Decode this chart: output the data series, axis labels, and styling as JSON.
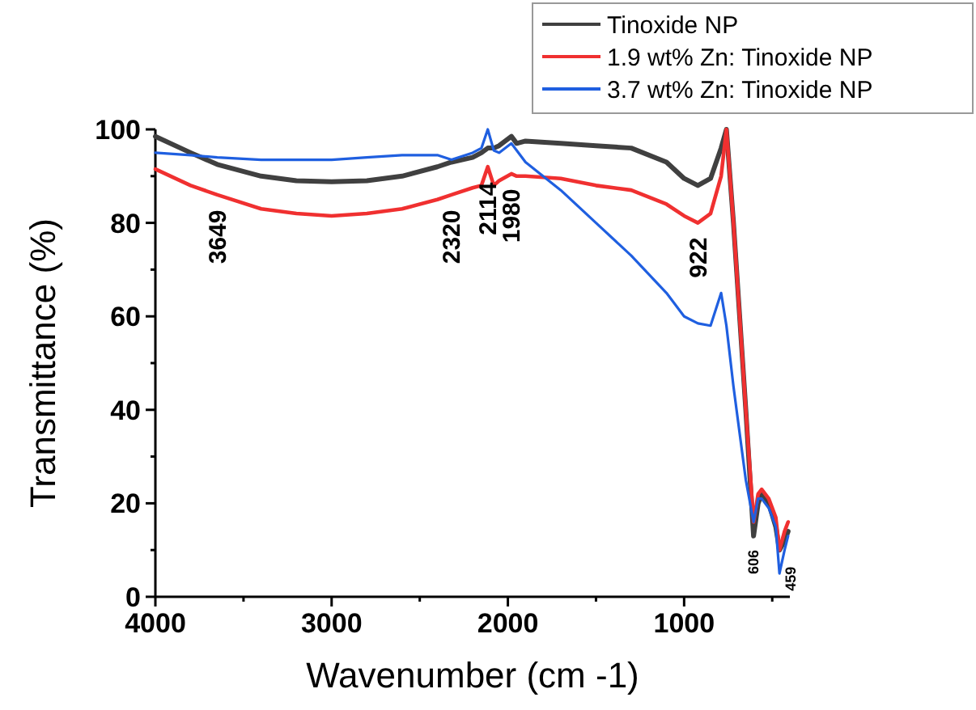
{
  "chart_data": {
    "type": "line",
    "xlabel": "Wavenumber (cm -1)",
    "ylabel": "Transmittance (%)",
    "xlim": [
      4000,
      400
    ],
    "xticks": [
      4000,
      {
        "value": 3500,
        "label": null
      },
      3000,
      {
        "value": 2500,
        "label": null
      },
      2000,
      {
        "value": 1500,
        "label": null
      },
      1000,
      {
        "value": 500,
        "label": null
      }
    ],
    "ylim": [
      0,
      100
    ],
    "yticks": [
      0,
      {
        "value": 10,
        "label": null
      },
      20,
      {
        "value": 30,
        "label": null
      },
      40,
      {
        "value": 50,
        "label": null
      },
      60,
      {
        "value": 70,
        "label": null
      },
      80,
      {
        "value": 90,
        "label": null
      },
      100
    ],
    "legend": "top right",
    "grid": false,
    "line_style": "solid",
    "marker": "none",
    "x": [
      4000,
      3800,
      3649,
      3400,
      3200,
      3000,
      2800,
      2600,
      2400,
      2320,
      2200,
      2150,
      2114,
      2080,
      2050,
      1980,
      1950,
      1900,
      1700,
      1500,
      1300,
      1100,
      1000,
      922,
      850,
      790,
      760,
      720,
      650,
      606,
      580,
      560,
      520,
      480,
      459,
      430,
      410
    ],
    "series": [
      {
        "name": "Tinoxide NP",
        "color": "#404040",
        "values": [
          98.5,
          95,
          92.5,
          90,
          89,
          88.8,
          89,
          90,
          92,
          93,
          94,
          95,
          96,
          96,
          96.5,
          98.5,
          97,
          97.5,
          97,
          96.5,
          96,
          93,
          89.5,
          88,
          89.5,
          96,
          100,
          80,
          40,
          13,
          20,
          22,
          20,
          15,
          10,
          12,
          14
        ]
      },
      {
        "name": "1.9 wt% Zn: Tinoxide NP",
        "color": "#f03030",
        "values": [
          91.5,
          88,
          86,
          83,
          82,
          81.5,
          82,
          83,
          85,
          86,
          87.5,
          88,
          92,
          88,
          89,
          90.5,
          90,
          90,
          89.5,
          88,
          87,
          84,
          81.5,
          80,
          82,
          90,
          100,
          80,
          40,
          16,
          22,
          23,
          21,
          17,
          10,
          14,
          16
        ]
      },
      {
        "name": "3.7 wt% Zn: Tinoxide NP",
        "color": "#1f5fe0",
        "values": [
          95,
          94.5,
          94,
          93.5,
          93.5,
          93.5,
          94,
          94.5,
          94.5,
          93.5,
          95,
          96,
          100,
          95.5,
          95,
          97,
          95.5,
          93,
          87,
          80,
          73,
          65,
          60,
          58.5,
          58,
          65,
          58,
          45,
          25,
          16,
          21,
          21,
          19,
          15,
          5,
          10,
          13
        ]
      }
    ],
    "annotations": [
      {
        "text": "3649",
        "x": 3649,
        "y": 86
      },
      {
        "text": "2320",
        "x": 2320,
        "y": 86
      },
      {
        "text": "2114",
        "x": 2114,
        "y": 92
      },
      {
        "text": "1980",
        "x": 1980,
        "y": 90.5
      },
      {
        "text": "922",
        "x": 922,
        "y": 80
      },
      {
        "text": "606",
        "x": 606,
        "y": 13
      },
      {
        "text": "459",
        "x": 459,
        "y": 5
      }
    ]
  }
}
